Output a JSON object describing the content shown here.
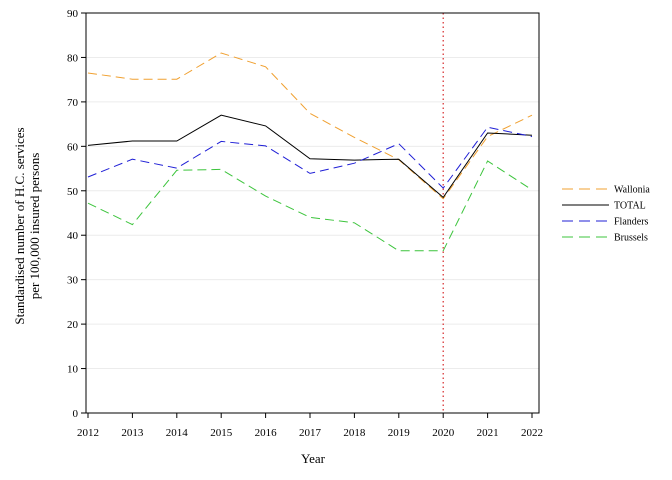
{
  "chart_data": {
    "type": "line",
    "xlabel": "Year",
    "ylabel_lines": [
      "Standardised number of H.C. services",
      "per 100,000 insured persons"
    ],
    "x": [
      2012,
      2013,
      2014,
      2015,
      2016,
      2017,
      2018,
      2019,
      2020,
      2021,
      2022
    ],
    "ylim": [
      0,
      90
    ],
    "yticks": [
      0,
      10,
      20,
      30,
      40,
      50,
      60,
      70,
      80,
      90
    ],
    "grid": "horizontal",
    "reference_line": {
      "x": 2020,
      "color": "#d62728",
      "style": "dotted"
    },
    "legend_position": "right",
    "series": [
      {
        "name": "Wallonia",
        "color": "#f0a030",
        "style": "dashed",
        "values": [
          76.5,
          75.1,
          75.1,
          81.0,
          77.9,
          67.4,
          62.0,
          57.0,
          48.2,
          62.2,
          67.0
        ]
      },
      {
        "name": "TOTAL",
        "color": "#000000",
        "style": "solid",
        "values": [
          60.2,
          61.2,
          61.2,
          67.0,
          64.6,
          57.2,
          56.9,
          57.1,
          48.5,
          63.0,
          62.5
        ]
      },
      {
        "name": "Flanders",
        "color": "#1f1fd6",
        "style": "dashed",
        "values": [
          53.1,
          57.1,
          55.1,
          61.1,
          60.1,
          53.9,
          56.2,
          60.6,
          50.6,
          64.3,
          62.2
        ]
      },
      {
        "name": "Brussels",
        "color": "#3cc43c",
        "style": "dashed",
        "values": [
          47.2,
          42.4,
          54.6,
          54.8,
          48.8,
          44.0,
          42.8,
          36.5,
          36.5,
          56.7,
          50.2
        ]
      }
    ]
  }
}
